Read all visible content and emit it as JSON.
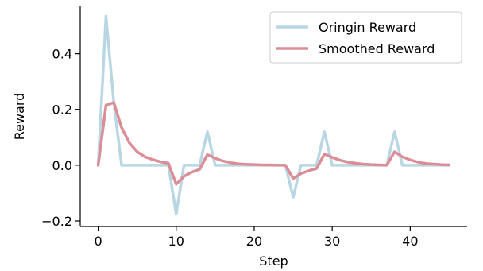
{
  "chart_data": {
    "type": "line",
    "title": "",
    "xlabel": "Step",
    "ylabel": "Reward",
    "xlim": [
      -2.3,
      47.3
    ],
    "ylim": [
      -0.22,
      0.57
    ],
    "xticks": [
      0,
      10,
      20,
      30,
      40
    ],
    "xtick_labels": [
      "0",
      "10",
      "20",
      "30",
      "40"
    ],
    "yticks": [
      -0.2,
      0.0,
      0.2,
      0.4
    ],
    "ytick_labels": [
      "−0.2",
      "0.0",
      "0.2",
      "0.4"
    ],
    "grid": false,
    "legend_position": "top-right",
    "x": [
      0,
      1,
      2,
      3,
      4,
      5,
      6,
      7,
      8,
      9,
      10,
      11,
      12,
      13,
      14,
      15,
      16,
      17,
      18,
      19,
      20,
      21,
      22,
      23,
      24,
      25,
      26,
      27,
      28,
      29,
      30,
      31,
      32,
      33,
      34,
      35,
      36,
      37,
      38,
      39,
      40,
      41,
      42,
      43,
      44,
      45
    ],
    "series": [
      {
        "name": "Oringin Reward",
        "color": "#b9d7e3",
        "values": [
          0.0,
          0.535,
          0.225,
          0.0,
          0.0,
          0.0,
          0.0,
          0.0,
          0.0,
          0.0,
          -0.175,
          0.0,
          0.0,
          0.0,
          0.12,
          0.0,
          0.0,
          0.0,
          0.0,
          0.0,
          0.0,
          0.0,
          0.0,
          0.0,
          0.0,
          -0.115,
          0.0,
          0.0,
          0.0,
          0.12,
          0.0,
          0.0,
          0.0,
          0.0,
          0.0,
          0.0,
          0.0,
          0.0,
          0.12,
          0.0,
          0.0,
          0.0,
          0.0,
          0.0,
          0.0,
          0.0
        ]
      },
      {
        "name": "Smoothed Reward",
        "color": "#dc8e98",
        "values": [
          0.0,
          0.215,
          0.225,
          0.135,
          0.08,
          0.048,
          0.03,
          0.02,
          0.012,
          0.007,
          -0.068,
          -0.04,
          -0.025,
          -0.015,
          0.038,
          0.025,
          0.015,
          0.009,
          0.005,
          0.003,
          0.002,
          0.001,
          0.001,
          0.0,
          0.0,
          -0.048,
          -0.03,
          -0.02,
          -0.012,
          0.04,
          0.028,
          0.018,
          0.011,
          0.007,
          0.004,
          0.002,
          0.001,
          0.0,
          0.048,
          0.03,
          0.019,
          0.011,
          0.006,
          0.004,
          0.002,
          0.001
        ]
      }
    ]
  }
}
